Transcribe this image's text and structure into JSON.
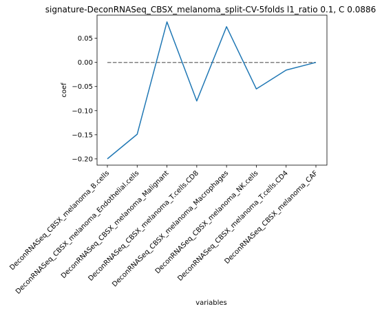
{
  "chart_data": {
    "type": "line",
    "title": "signature-DeconRNASeq_CBSX_melanoma_split-CV-5folds l1_ratio 0.1, C 0.0886",
    "xlabel": "variables",
    "ylabel": "coef",
    "ylim": [
      -0.213,
      0.098
    ],
    "yticks": [
      0.05,
      0.0,
      -0.05,
      -0.1,
      -0.15,
      -0.2
    ],
    "ytick_labels": [
      "0.05",
      "0.00",
      "−0.05",
      "−0.10",
      "−0.15",
      "−0.20"
    ],
    "categories": [
      "DeconRNASeq_CBSX_melanoma_B.cells",
      "DeconRNASeq_CBSX_melanoma_Endothelial.cells",
      "DeconRNASeq_CBSX_melanoma_Malignant",
      "DeconRNASeq_CBSX_melanoma_T.cells.CD8",
      "DeconRNASeq_CBSX_melanoma_Macrophages",
      "DeconRNASeq_CBSX_melanoma_NK.cells",
      "DeconRNASeq_CBSX_melanoma_T.cells.CD4",
      "DeconRNASeq_CBSX_melanoma_CAF"
    ],
    "series": [
      {
        "values": [
          -0.2,
          -0.149,
          0.084,
          -0.08,
          0.074,
          -0.055,
          -0.016,
          0.0
        ],
        "color": "#1f77b4"
      }
    ],
    "reference_line": {
      "y": 0,
      "style": "dashed",
      "color": "#808080"
    },
    "grid": false
  }
}
